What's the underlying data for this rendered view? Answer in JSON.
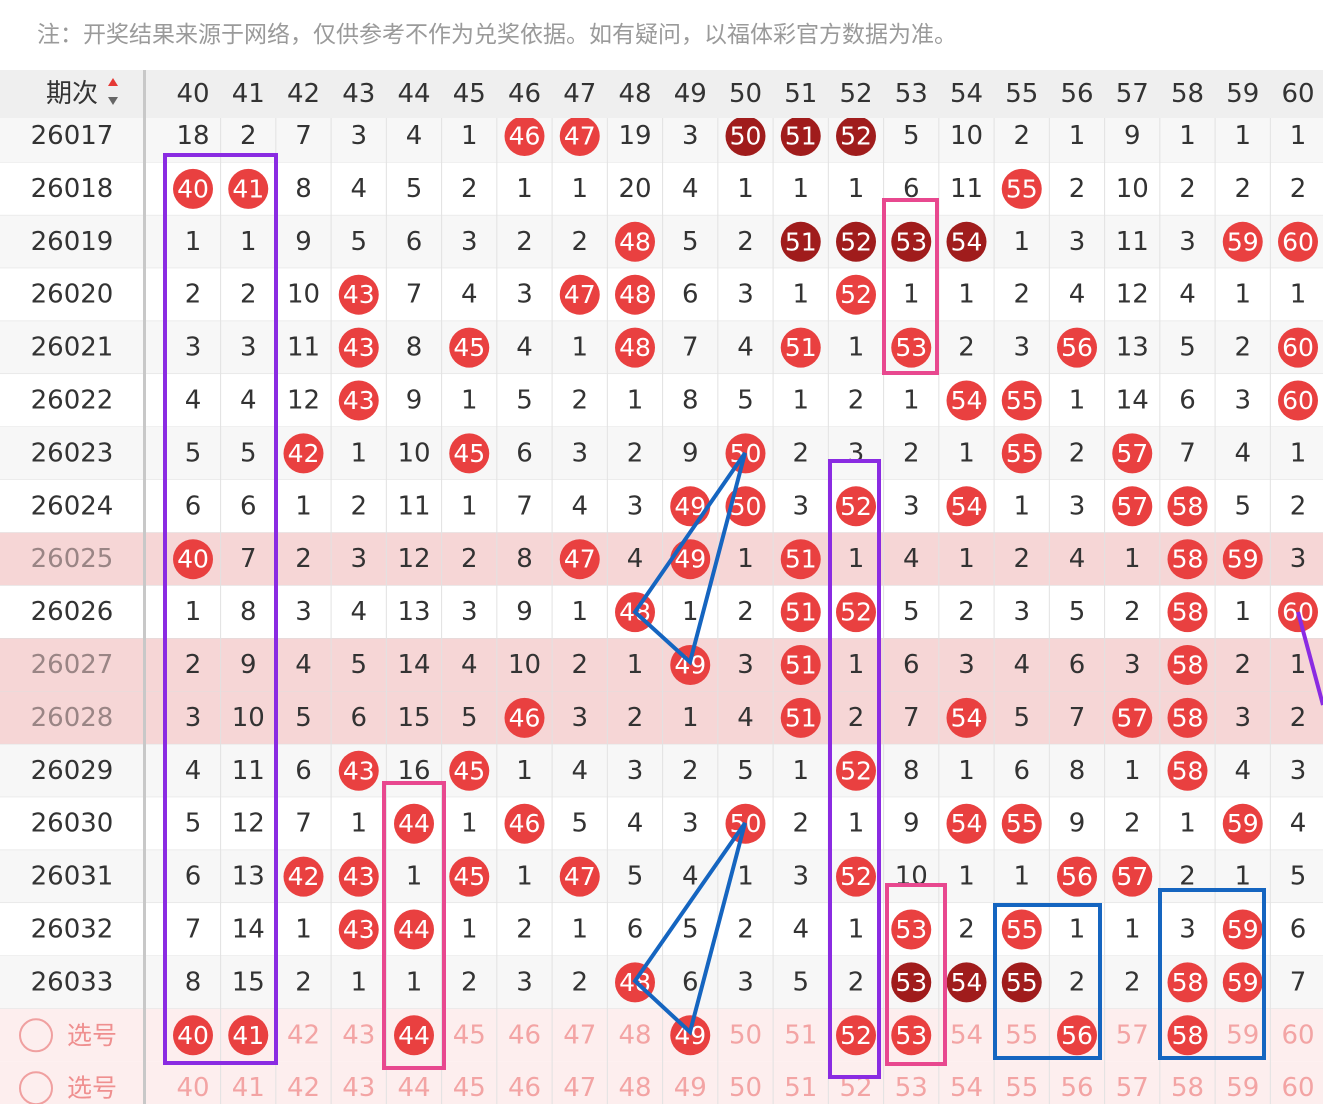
{
  "note": "注：开奖结果来源于网络，仅供参考不作为兑奖依据。如有疑问，以福体彩官方数据为准。",
  "ball_colors": {
    "red": "#e94040",
    "dark": "#a01c1c"
  },
  "header": {
    "issue": "期次",
    "columns": [
      "40",
      "41",
      "42",
      "43",
      "44",
      "45",
      "46",
      "47",
      "48",
      "49",
      "50",
      "51",
      "52",
      "53",
      "54",
      "55",
      "56",
      "57",
      "58",
      "59",
      "60"
    ]
  },
  "rows": [
    {
      "issue": "26017",
      "cells": [
        "18",
        "2",
        "7",
        "3",
        "4",
        "1",
        {
          "t": "46",
          "b": "red"
        },
        {
          "t": "47",
          "b": "red"
        },
        "19",
        "3",
        {
          "t": "50",
          "b": "dark"
        },
        {
          "t": "51",
          "b": "dark"
        },
        {
          "t": "52",
          "b": "dark"
        },
        "5",
        "10",
        "2",
        "1",
        "9",
        "1",
        "1",
        "1"
      ]
    },
    {
      "issue": "26018",
      "cells": [
        {
          "t": "40",
          "b": "red"
        },
        {
          "t": "41",
          "b": "red"
        },
        "8",
        "4",
        "5",
        "2",
        "1",
        "1",
        "20",
        "4",
        "1",
        "1",
        "1",
        "6",
        "11",
        {
          "t": "55",
          "b": "red"
        },
        "2",
        "10",
        "2",
        "2",
        "2"
      ]
    },
    {
      "issue": "26019",
      "cells": [
        "1",
        "1",
        "9",
        "5",
        "6",
        "3",
        "2",
        "2",
        {
          "t": "48",
          "b": "red"
        },
        "5",
        "2",
        {
          "t": "51",
          "b": "dark"
        },
        {
          "t": "52",
          "b": "dark"
        },
        {
          "t": "53",
          "b": "dark"
        },
        {
          "t": "54",
          "b": "dark"
        },
        "1",
        "3",
        "11",
        "3",
        {
          "t": "59",
          "b": "red"
        },
        {
          "t": "60",
          "b": "red"
        }
      ]
    },
    {
      "issue": "26020",
      "cells": [
        "2",
        "2",
        "10",
        {
          "t": "43",
          "b": "red"
        },
        "7",
        "4",
        "3",
        {
          "t": "47",
          "b": "red"
        },
        {
          "t": "48",
          "b": "red"
        },
        "6",
        "3",
        "1",
        {
          "t": "52",
          "b": "red"
        },
        "1",
        "1",
        "2",
        "4",
        "12",
        "4",
        "1",
        "1"
      ]
    },
    {
      "issue": "26021",
      "cells": [
        "3",
        "3",
        "11",
        {
          "t": "43",
          "b": "red"
        },
        "8",
        {
          "t": "45",
          "b": "red"
        },
        "4",
        "1",
        {
          "t": "48",
          "b": "red"
        },
        "7",
        "4",
        {
          "t": "51",
          "b": "red"
        },
        "1",
        {
          "t": "53",
          "b": "red"
        },
        "2",
        "3",
        {
          "t": "56",
          "b": "red"
        },
        "13",
        "5",
        "2",
        {
          "t": "60",
          "b": "red"
        }
      ]
    },
    {
      "issue": "26022",
      "cells": [
        "4",
        "4",
        "12",
        {
          "t": "43",
          "b": "red"
        },
        "9",
        "1",
        "5",
        "2",
        "1",
        "8",
        "5",
        "1",
        "2",
        "1",
        {
          "t": "54",
          "b": "red"
        },
        {
          "t": "55",
          "b": "red"
        },
        "1",
        "14",
        "6",
        "3",
        {
          "t": "60",
          "b": "red"
        }
      ]
    },
    {
      "issue": "26023",
      "cells": [
        "5",
        "5",
        {
          "t": "42",
          "b": "red"
        },
        "1",
        "10",
        {
          "t": "45",
          "b": "red"
        },
        "6",
        "3",
        "2",
        "9",
        {
          "t": "50",
          "b": "red"
        },
        "2",
        "3",
        "2",
        "1",
        {
          "t": "55",
          "b": "red"
        },
        "2",
        {
          "t": "57",
          "b": "red"
        },
        "7",
        "4",
        "1"
      ]
    },
    {
      "issue": "26024",
      "cells": [
        "6",
        "6",
        "1",
        "2",
        "11",
        "1",
        "7",
        "4",
        "3",
        {
          "t": "49",
          "b": "red"
        },
        {
          "t": "50",
          "b": "red"
        },
        "3",
        {
          "t": "52",
          "b": "red"
        },
        "3",
        {
          "t": "54",
          "b": "red"
        },
        "1",
        "3",
        {
          "t": "57",
          "b": "red"
        },
        {
          "t": "58",
          "b": "red"
        },
        "5",
        "2"
      ]
    },
    {
      "issue": "26025",
      "highlight": true,
      "cells": [
        {
          "t": "40",
          "b": "red"
        },
        "7",
        "2",
        "3",
        "12",
        "2",
        "8",
        {
          "t": "47",
          "b": "red"
        },
        "4",
        {
          "t": "49",
          "b": "red"
        },
        "1",
        {
          "t": "51",
          "b": "red"
        },
        "1",
        "4",
        "1",
        "2",
        "4",
        "1",
        {
          "t": "58",
          "b": "red"
        },
        {
          "t": "59",
          "b": "red"
        },
        "3"
      ]
    },
    {
      "issue": "26026",
      "cells": [
        "1",
        "8",
        "3",
        "4",
        "13",
        "3",
        "9",
        "1",
        {
          "t": "48",
          "b": "red"
        },
        "1",
        "2",
        {
          "t": "51",
          "b": "red"
        },
        {
          "t": "52",
          "b": "red"
        },
        "5",
        "2",
        "3",
        "5",
        "2",
        {
          "t": "58",
          "b": "red"
        },
        "1",
        {
          "t": "60",
          "b": "red"
        }
      ]
    },
    {
      "issue": "26027",
      "highlight": true,
      "cells": [
        "2",
        "9",
        "4",
        "5",
        "14",
        "4",
        "10",
        "2",
        "1",
        {
          "t": "49",
          "b": "red"
        },
        "3",
        {
          "t": "51",
          "b": "red"
        },
        "1",
        "6",
        "3",
        "4",
        "6",
        "3",
        {
          "t": "58",
          "b": "red"
        },
        "2",
        "1"
      ]
    },
    {
      "issue": "26028",
      "highlight": true,
      "cells": [
        "3",
        "10",
        "5",
        "6",
        "15",
        "5",
        {
          "t": "46",
          "b": "red"
        },
        "3",
        "2",
        "1",
        "4",
        {
          "t": "51",
          "b": "red"
        },
        "2",
        "7",
        {
          "t": "54",
          "b": "red"
        },
        "5",
        "7",
        {
          "t": "57",
          "b": "red"
        },
        {
          "t": "58",
          "b": "red"
        },
        "3",
        "2"
      ]
    },
    {
      "issue": "26029",
      "cells": [
        "4",
        "11",
        "6",
        {
          "t": "43",
          "b": "red"
        },
        "16",
        {
          "t": "45",
          "b": "red"
        },
        "1",
        "4",
        "3",
        "2",
        "5",
        "1",
        {
          "t": "52",
          "b": "red"
        },
        "8",
        "1",
        "6",
        "8",
        "1",
        {
          "t": "58",
          "b": "red"
        },
        "4",
        "3"
      ]
    },
    {
      "issue": "26030",
      "cells": [
        "5",
        "12",
        "7",
        "1",
        {
          "t": "44",
          "b": "red"
        },
        "1",
        {
          "t": "46",
          "b": "red"
        },
        "5",
        "4",
        "3",
        {
          "t": "50",
          "b": "red"
        },
        "2",
        "1",
        "9",
        {
          "t": "54",
          "b": "red"
        },
        {
          "t": "55",
          "b": "red"
        },
        "9",
        "2",
        "1",
        {
          "t": "59",
          "b": "red"
        },
        "4"
      ]
    },
    {
      "issue": "26031",
      "cells": [
        "6",
        "13",
        {
          "t": "42",
          "b": "red"
        },
        {
          "t": "43",
          "b": "red"
        },
        "1",
        {
          "t": "45",
          "b": "red"
        },
        "1",
        {
          "t": "47",
          "b": "red"
        },
        "5",
        "4",
        "1",
        "3",
        {
          "t": "52",
          "b": "red"
        },
        "10",
        "1",
        "1",
        {
          "t": "56",
          "b": "red"
        },
        {
          "t": "57",
          "b": "red"
        },
        "2",
        "1",
        "5"
      ]
    },
    {
      "issue": "26032",
      "cells": [
        "7",
        "14",
        "1",
        {
          "t": "43",
          "b": "red"
        },
        {
          "t": "44",
          "b": "red"
        },
        "1",
        "2",
        "1",
        "6",
        "5",
        "2",
        "4",
        "1",
        {
          "t": "53",
          "b": "red"
        },
        "2",
        {
          "t": "55",
          "b": "red"
        },
        "1",
        "1",
        "3",
        {
          "t": "59",
          "b": "red"
        },
        "6"
      ]
    },
    {
      "issue": "26033",
      "cells": [
        "8",
        "15",
        "2",
        "1",
        "1",
        "2",
        "3",
        "2",
        {
          "t": "48",
          "b": "red"
        },
        "6",
        "3",
        "5",
        "2",
        {
          "t": "53",
          "b": "dark"
        },
        {
          "t": "54",
          "b": "dark"
        },
        {
          "t": "55",
          "b": "dark"
        },
        "2",
        "2",
        {
          "t": "58",
          "b": "red"
        },
        {
          "t": "59",
          "b": "red"
        },
        "7"
      ]
    }
  ],
  "pick_rows": [
    {
      "label": "选号",
      "cells": [
        {
          "t": "40",
          "b": "red"
        },
        {
          "t": "41",
          "b": "red"
        },
        "42",
        "43",
        {
          "t": "44",
          "b": "red"
        },
        "45",
        "46",
        "47",
        "48",
        {
          "t": "49",
          "b": "red"
        },
        "50",
        "51",
        {
          "t": "52",
          "b": "red"
        },
        {
          "t": "53",
          "b": "red"
        },
        "54",
        "55",
        {
          "t": "56",
          "b": "red"
        },
        "57",
        {
          "t": "58",
          "b": "red"
        },
        "59",
        "60"
      ]
    },
    {
      "label": "选号",
      "cells": [
        "40",
        "41",
        "42",
        "43",
        "44",
        "45",
        "46",
        "47",
        "48",
        "49",
        "50",
        "51",
        "52",
        "53",
        "54",
        "55",
        "56",
        "57",
        "58",
        "59",
        "60"
      ]
    }
  ]
}
